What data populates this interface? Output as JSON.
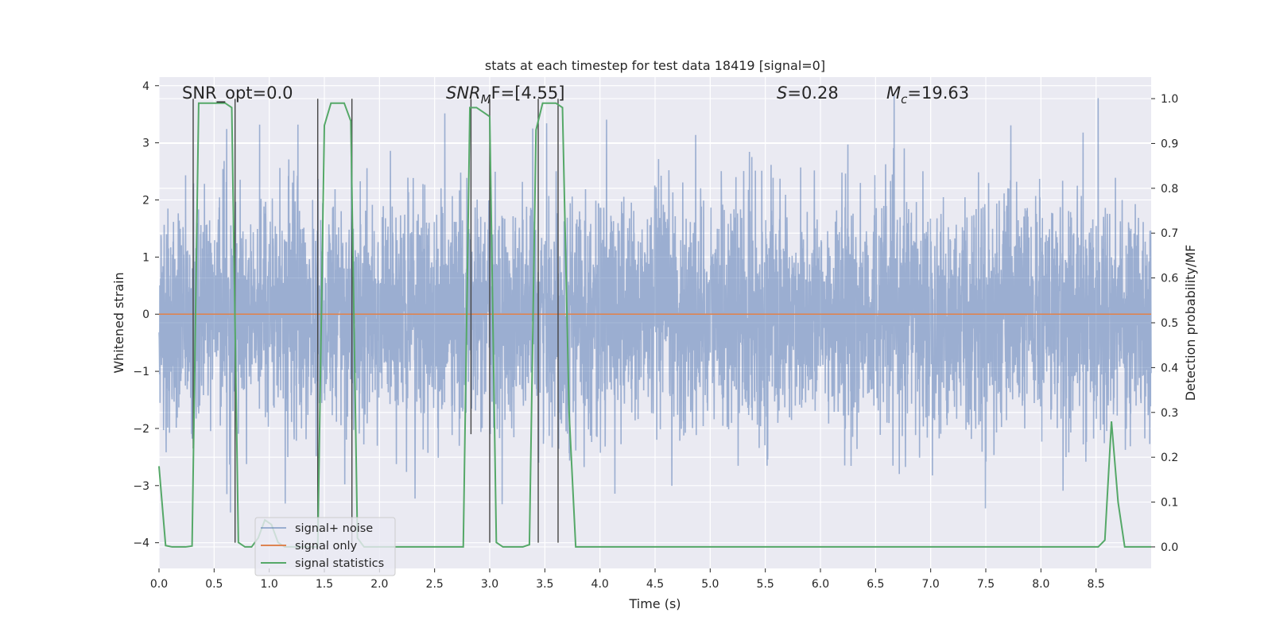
{
  "chart_data": {
    "type": "line",
    "title": "stats at each timestep for test data 18419 [signal=0]",
    "xlabel": "Time (s)",
    "ylabel_left": "Whitened strain",
    "ylabel_right": "Detection probability/MF",
    "xlim": [
      0.0,
      9.0
    ],
    "ylim_left": [
      -4.45,
      4.15
    ],
    "ylim_right": [
      -0.048,
      1.048
    ],
    "x_ticks": [
      0.0,
      0.5,
      1.0,
      1.5,
      2.0,
      2.5,
      3.0,
      3.5,
      4.0,
      4.5,
      5.0,
      5.5,
      6.0,
      6.5,
      7.0,
      7.5,
      8.0,
      8.5
    ],
    "x_tick_labels": [
      "0.0",
      "0.5",
      "1.0",
      "1.5",
      "2.0",
      "2.5",
      "3.0",
      "3.5",
      "4.0",
      "4.5",
      "5.0",
      "5.5",
      "6.0",
      "6.5",
      "7.0",
      "7.5",
      "8.0",
      "8.5"
    ],
    "y_ticks_left": [
      -4,
      -3,
      -2,
      -1,
      0,
      1,
      2,
      3,
      4
    ],
    "y_tick_labels_left": [
      "−4",
      "−3",
      "−2",
      "−1",
      "0",
      "1",
      "2",
      "3",
      "4"
    ],
    "y_ticks_right": [
      0.0,
      0.1,
      0.2,
      0.3,
      0.4,
      0.5,
      0.6,
      0.7,
      0.8,
      0.9,
      1.0
    ],
    "y_tick_labels_right": [
      "0.0",
      "0.1",
      "0.2",
      "0.3",
      "0.4",
      "0.5",
      "0.6",
      "0.7",
      "0.8",
      "0.9",
      "1.0"
    ],
    "grid": true,
    "legend_position": "lower-left",
    "annotations": {
      "snr_opt": "SNR_opt=0.0",
      "snr_mf_main": "SNR",
      "snr_mf_sub": "M",
      "snr_mf_rest": "F=[4.55]",
      "s_italic": "S",
      "s_rest": "=0.28",
      "mc_main": "M",
      "mc_sub": "c",
      "mc_rest": "=19.63"
    },
    "series": [
      {
        "name": "signal+ noise",
        "axis": "left",
        "color": "#4c72b0",
        "alpha": 0.5,
        "description_range": [
          -4.0,
          4.0
        ],
        "noise_std": 1.0
      },
      {
        "name": "signal only",
        "axis": "left",
        "color": "#dd8452",
        "x": [
          0.0,
          9.0
        ],
        "y": [
          0.0,
          0.0
        ]
      },
      {
        "name": "signal statistics",
        "axis": "right",
        "color": "#55a868",
        "x": [
          0.0,
          0.06,
          0.12,
          0.18,
          0.24,
          0.3,
          0.36,
          0.42,
          0.48,
          0.54,
          0.6,
          0.66,
          0.72,
          0.78,
          0.84,
          0.9,
          0.96,
          1.02,
          1.08,
          1.14,
          1.2,
          1.26,
          1.32,
          1.38,
          1.44,
          1.5,
          1.56,
          1.62,
          1.68,
          1.74,
          1.8,
          1.86,
          1.92,
          1.98,
          2.04,
          2.1,
          2.16,
          2.22,
          2.28,
          2.34,
          2.4,
          2.46,
          2.52,
          2.58,
          2.64,
          2.7,
          2.76,
          2.82,
          2.88,
          2.94,
          3.0,
          3.06,
          3.12,
          3.18,
          3.24,
          3.3,
          3.36,
          3.42,
          3.48,
          3.54,
          3.6,
          3.66,
          3.72,
          3.78,
          3.84,
          3.9,
          3.96,
          4.02,
          4.08,
          4.14,
          4.2,
          4.26,
          4.32,
          4.38,
          4.44,
          4.5,
          4.56,
          4.62,
          4.68,
          4.74,
          4.8,
          4.86,
          4.92,
          4.98,
          5.04,
          5.1,
          5.16,
          5.22,
          5.28,
          5.34,
          5.4,
          5.46,
          5.52,
          5.58,
          5.64,
          5.7,
          5.76,
          5.82,
          5.88,
          5.94,
          6.0,
          6.06,
          6.12,
          6.18,
          6.24,
          6.3,
          6.36,
          6.42,
          6.48,
          6.54,
          6.6,
          6.66,
          6.72,
          6.78,
          6.84,
          6.9,
          6.96,
          7.02,
          7.08,
          7.14,
          7.2,
          7.26,
          7.32,
          7.38,
          7.44,
          7.5,
          7.56,
          7.62,
          7.68,
          7.74,
          7.8,
          7.86,
          7.92,
          7.98,
          8.04,
          8.1,
          8.16,
          8.22,
          8.28,
          8.34,
          8.4,
          8.46,
          8.52,
          8.58,
          8.64,
          8.7,
          8.76,
          8.82,
          8.88,
          8.94,
          9.0
        ],
        "y": [
          0.18,
          0.003,
          0.0,
          0.0,
          0.0,
          0.002,
          0.99,
          0.99,
          0.99,
          0.99,
          0.99,
          0.98,
          0.01,
          0.0,
          0.0,
          0.02,
          0.06,
          0.05,
          0.01,
          0.0,
          0.0,
          0.0,
          0.0,
          0.0,
          0.0,
          0.94,
          0.99,
          0.99,
          0.99,
          0.95,
          0.02,
          0.0,
          0.0,
          0.0,
          0.0,
          0.0,
          0.0,
          0.0,
          0.0,
          0.0,
          0.0,
          0.0,
          0.0,
          0.0,
          0.0,
          0.0,
          0.0,
          0.98,
          0.98,
          0.97,
          0.96,
          0.01,
          0.0,
          0.0,
          0.0,
          0.0,
          0.005,
          0.93,
          0.99,
          0.99,
          0.99,
          0.98,
          0.3,
          0.0,
          0.0,
          0.0,
          0.0,
          0.0,
          0.0,
          0.0,
          0.0,
          0.0,
          0.0,
          0.0,
          0.0,
          0.0,
          0.0,
          0.0,
          0.0,
          0.0,
          0.0,
          0.0,
          0.0,
          0.0,
          0.0,
          0.0,
          0.0,
          0.0,
          0.0,
          0.0,
          0.0,
          0.0,
          0.0,
          0.0,
          0.0,
          0.0,
          0.0,
          0.0,
          0.0,
          0.0,
          0.0,
          0.0,
          0.0,
          0.0,
          0.0,
          0.0,
          0.0,
          0.0,
          0.0,
          0.0,
          0.0,
          0.0,
          0.0,
          0.0,
          0.0,
          0.0,
          0.0,
          0.0,
          0.0,
          0.0,
          0.0,
          0.0,
          0.0,
          0.0,
          0.0,
          0.0,
          0.0,
          0.0,
          0.0,
          0.0,
          0.0,
          0.0,
          0.0,
          0.0,
          0.0,
          0.0,
          0.0,
          0.0,
          0.0,
          0.0,
          0.0,
          0.0,
          0.0,
          0.015,
          0.28,
          0.1,
          0.0,
          0.0,
          0.0,
          0.0,
          0.0
        ]
      }
    ],
    "vertical_markers": [
      {
        "x": 0.31,
        "y_bottom": -2.35,
        "y_top": 3.77
      },
      {
        "x": 0.69,
        "y_bottom": -4.0,
        "y_top": 3.77
      },
      {
        "x": 1.44,
        "y_bottom": -4.0,
        "y_top": 3.77
      },
      {
        "x": 1.75,
        "y_bottom": -4.0,
        "y_top": 3.77
      },
      {
        "x": 2.83,
        "y_bottom": -2.1,
        "y_top": 3.77
      },
      {
        "x": 3.0,
        "y_bottom": -4.0,
        "y_top": 3.77
      },
      {
        "x": 3.44,
        "y_bottom": -4.0,
        "y_top": 3.77
      },
      {
        "x": 3.62,
        "y_bottom": -4.0,
        "y_top": 3.77
      }
    ]
  },
  "colors": {
    "plot_background": "#eaeaf2",
    "grid": "#ffffff",
    "text": "#262626",
    "marker": "#444444"
  }
}
